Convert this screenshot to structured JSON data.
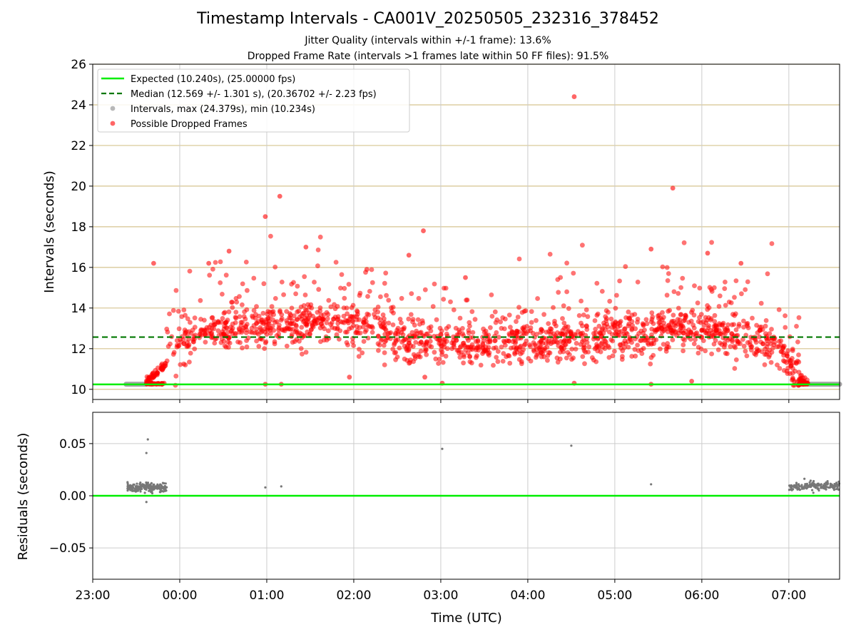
{
  "chart_data": [
    {
      "type": "scatter",
      "title": "Timestamp Intervals - CA001V_20250505_232316_378452",
      "subtitle_lines": [
        "Jitter Quality (intervals within +/-1 frame): 13.6%",
        "Dropped Frame Rate (intervals >1 frames late within 50 FF files): 91.5%"
      ],
      "ylabel": "Intervals (seconds)",
      "xlabel": "",
      "ylim": [
        9.5,
        26
      ],
      "yticks": [
        10,
        12,
        14,
        16,
        18,
        20,
        22,
        24,
        26
      ],
      "xlim": [
        "23:00",
        "07:35"
      ],
      "grid": true,
      "legend_position": "top-left",
      "legend": [
        "Expected (10.240s), (25.00000 fps)",
        "Median (12.569 +/- 1.301 s), (20.36702 +/- 2.23 fps)",
        "Intervals, max (24.379s), min (10.234s)",
        "Possible Dropped Frames"
      ],
      "expected_interval": 10.24,
      "median_interval": 12.569,
      "series": [
        {
          "name": "Intervals, max (24.379s), min (10.234s)",
          "segments": [
            {
              "x_start": "23:23",
              "x_end": "23:37",
              "y": 10.25
            },
            {
              "x_start": "07:13",
              "x_end": "07:35",
              "y": 10.25
            }
          ]
        },
        {
          "name": "Possible Dropped Frames",
          "trend": [
            {
              "x": "23:37",
              "y": 10.3
            },
            {
              "x": "23:45",
              "y": 10.7
            },
            {
              "x": "23:55",
              "y": 11.5
            },
            {
              "x": "00:10",
              "y": 12.6
            },
            {
              "x": "00:20",
              "y": 12.9
            },
            {
              "x": "00:40",
              "y": 13.0
            },
            {
              "x": "01:10",
              "y": 13.1
            },
            {
              "x": "01:50",
              "y": 13.2
            },
            {
              "x": "02:15",
              "y": 13.0
            },
            {
              "x": "02:30",
              "y": 12.3
            },
            {
              "x": "03:30",
              "y": 12.2
            },
            {
              "x": "04:30",
              "y": 12.4
            },
            {
              "x": "05:00",
              "y": 12.6
            },
            {
              "x": "05:40",
              "y": 12.9
            },
            {
              "x": "06:20",
              "y": 12.6
            },
            {
              "x": "06:50",
              "y": 12.3
            },
            {
              "x": "07:00",
              "y": 11.2
            },
            {
              "x": "07:07",
              "y": 10.4
            },
            {
              "x": "07:13",
              "y": 10.25
            }
          ],
          "outliers": [
            {
              "x": "23:42",
              "y": 16.2
            },
            {
              "x": "00:20",
              "y": 16.2
            },
            {
              "x": "00:34",
              "y": 16.8
            },
            {
              "x": "00:59",
              "y": 18.5
            },
            {
              "x": "01:09",
              "y": 19.5
            },
            {
              "x": "01:27",
              "y": 17.0
            },
            {
              "x": "02:09",
              "y": 15.9
            },
            {
              "x": "02:38",
              "y": 16.6
            },
            {
              "x": "02:48",
              "y": 17.8
            },
            {
              "x": "03:17",
              "y": 15.5
            },
            {
              "x": "04:32",
              "y": 24.4
            },
            {
              "x": "05:25",
              "y": 16.9
            },
            {
              "x": "05:40",
              "y": 19.9
            },
            {
              "x": "06:04",
              "y": 16.7
            },
            {
              "x": "06:27",
              "y": 16.2
            },
            {
              "x": "00:59",
              "y": 10.25
            },
            {
              "x": "01:10",
              "y": 10.25
            },
            {
              "x": "03:01",
              "y": 10.3
            },
            {
              "x": "04:32",
              "y": 10.3
            },
            {
              "x": "05:25",
              "y": 10.25
            },
            {
              "x": "05:53",
              "y": 10.4
            },
            {
              "x": "01:57",
              "y": 10.6
            },
            {
              "x": "02:49",
              "y": 10.6
            }
          ]
        }
      ]
    },
    {
      "type": "scatter",
      "ylabel": "Residuals (seconds)",
      "xlabel": "Time (UTC)",
      "ylim": [
        -0.08,
        0.08
      ],
      "yticks": [
        0.05,
        0.0,
        -0.05
      ],
      "ytick_labels": [
        "0.05",
        "0.00",
        "−0.05"
      ],
      "xticks": [
        "23:00",
        "00:00",
        "01:00",
        "02:00",
        "03:00",
        "04:00",
        "05:00",
        "06:00",
        "07:00"
      ],
      "grid": true,
      "series": [
        {
          "name": "",
          "clusters": [
            {
              "x_start": "23:24",
              "x_end": "23:51",
              "y_center": 0.008
            },
            {
              "x_start": "07:00",
              "x_end": "07:35",
              "y_center": 0.009
            }
          ],
          "points": [
            {
              "x": "23:24",
              "y": 0.013
            },
            {
              "x": "23:37",
              "y": 0.041
            },
            {
              "x": "23:38",
              "y": 0.054
            },
            {
              "x": "23:37",
              "y": -0.006
            },
            {
              "x": "00:59",
              "y": 0.008
            },
            {
              "x": "01:10",
              "y": 0.009
            },
            {
              "x": "03:01",
              "y": 0.045
            },
            {
              "x": "04:30",
              "y": 0.048
            },
            {
              "x": "05:25",
              "y": 0.011
            }
          ]
        }
      ]
    }
  ]
}
